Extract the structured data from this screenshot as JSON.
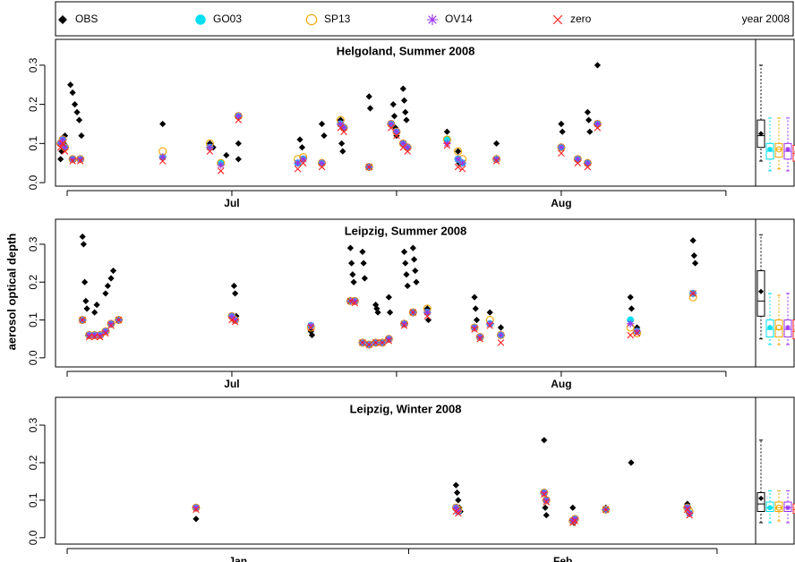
{
  "chart_data": {
    "type": "scatter",
    "ylabel": "aerosol optical depth",
    "note": "year 2008",
    "series": [
      {
        "name": "OBS",
        "color": "#000000",
        "marker": "diamond"
      },
      {
        "name": "GO03",
        "color": "#00e0f0",
        "marker": "dot"
      },
      {
        "name": "SP13",
        "color": "#f0a500",
        "marker": "ring"
      },
      {
        "name": "OV14",
        "color": "#9a32f0",
        "marker": "star"
      },
      {
        "name": "zero",
        "color": "#ff2020",
        "marker": "cross"
      }
    ],
    "panels": [
      {
        "title": "Helgoland, Summer 2008",
        "xlim": [
          -1.06,
          62.7
        ],
        "ylim": [
          -0.009,
          0.366
        ],
        "xticks": [
          0,
          15,
          30,
          45,
          60
        ],
        "xlabels": [
          {
            "value": 15,
            "label": "Jul"
          },
          {
            "value": 45,
            "label": "Aug"
          }
        ],
        "yticks": [
          {
            "value": 0,
            "label": "0.0"
          },
          {
            "value": 0.1,
            "label": "0.1"
          },
          {
            "value": 0.2,
            "label": "0.2"
          },
          {
            "value": 0.3,
            "label": "0.3"
          }
        ],
        "x": [
          -0.6,
          -0.4,
          -0.2,
          0.5,
          1.2,
          8.7,
          13,
          14,
          15.6,
          21,
          21.5,
          23.2,
          24.9,
          25.2,
          27.5,
          29.5,
          30,
          30.6,
          31,
          34.6,
          35.6,
          36,
          39.1,
          45,
          46.5,
          47.4,
          48.3
        ],
        "series": [
          {
            "x": [
              -0.6,
              -0.5,
              -0.3,
              -0.2,
              0.3,
              0.5,
              0.7,
              0.9,
              1.1,
              1.3,
              8.7,
              13,
              13.3,
              14.5,
              15.6,
              15.6,
              21.2,
              21.4,
              23.2,
              23.4,
              24.9,
              25,
              25.1,
              27.5,
              27.6,
              29.7,
              29.8,
              29.9,
              30,
              30.6,
              30.7,
              30.8,
              30.9,
              34.6,
              34.7,
              35.6,
              35.7,
              39.1,
              45,
              45.1,
              47.4,
              47.5,
              47.6,
              48.3
            ],
            "values": [
              0.06,
              0.08,
              0.1,
              0.12,
              0.25,
              0.23,
              0.2,
              0.18,
              0.16,
              0.12,
              0.15,
              0.1,
              0.09,
              0.07,
              0.1,
              0.06,
              0.11,
              0.09,
              0.15,
              0.12,
              0.16,
              0.1,
              0.08,
              0.22,
              0.19,
              0.2,
              0.17,
              0.14,
              0.12,
              0.24,
              0.21,
              0.18,
              0.16,
              0.13,
              0.11,
              0.08,
              0.05,
              0.1,
              0.15,
              0.13,
              0.18,
              0.16,
              0.13,
              0.3
            ],
            "box": [
              0.055,
              0.09,
              0.12,
              0.16,
              0.3,
              0.125
            ]
          },
          {
            "values": [
              0.1,
              0.11,
              0.09,
              0.06,
              0.06,
              0.065,
              0.09,
              0.05,
              0.17,
              0.05,
              0.06,
              0.05,
              0.15,
              0.14,
              0.04,
              0.15,
              0.13,
              0.1,
              0.09,
              0.11,
              0.06,
              0.05,
              0.06,
              0.09,
              0.06,
              0.05,
              0.15
            ],
            "box": [
              0.03,
              0.06,
              0.08,
              0.1,
              0.165,
              0.085
            ]
          },
          {
            "values": [
              0.1,
              0.11,
              0.09,
              0.06,
              0.06,
              0.08,
              0.1,
              0.05,
              0.17,
              0.06,
              0.065,
              0.05,
              0.16,
              0.14,
              0.04,
              0.15,
              0.13,
              0.1,
              0.09,
              0.11,
              0.08,
              0.06,
              0.06,
              0.09,
              0.06,
              0.05,
              0.15
            ],
            "box": [
              0.035,
              0.065,
              0.085,
              0.1,
              0.165,
              0.085
            ]
          },
          {
            "values": [
              0.1,
              0.11,
              0.09,
              0.06,
              0.06,
              0.065,
              0.09,
              0.045,
              0.17,
              0.05,
              0.06,
              0.05,
              0.15,
              0.14,
              0.04,
              0.15,
              0.13,
              0.1,
              0.09,
              0.1,
              0.06,
              0.05,
              0.06,
              0.09,
              0.06,
              0.05,
              0.15
            ],
            "box": [
              0.03,
              0.06,
              0.08,
              0.1,
              0.165,
              0.085
            ]
          },
          {
            "values": [
              0.09,
              0.1,
              0.08,
              0.055,
              0.055,
              0.055,
              0.08,
              0.03,
              0.16,
              0.035,
              0.05,
              0.04,
              0.14,
              0.13,
              0.04,
              0.14,
              0.12,
              0.09,
              0.08,
              0.095,
              0.04,
              0.035,
              0.055,
              0.075,
              0.05,
              0.04,
              0.14
            ],
            "box": [
              0.03,
              0.055,
              0.075,
              0.095,
              0.16,
              0.075
            ]
          }
        ]
      },
      {
        "title": "Leipzig, Summer 2008",
        "xlim": [
          -1.06,
          62.7
        ],
        "ylim": [
          -0.024,
          0.366
        ],
        "xticks": [
          0,
          15,
          30,
          45,
          60
        ],
        "xlabels": [
          {
            "value": 15,
            "label": "Jul"
          },
          {
            "value": 45,
            "label": "Aug"
          }
        ],
        "yticks": [
          {
            "value": 0,
            "label": "0.0"
          },
          {
            "value": 0.1,
            "label": "0.1"
          },
          {
            "value": 0.2,
            "label": "0.2"
          },
          {
            "value": 0.3,
            "label": "0.3"
          }
        ],
        "x": [
          1.4,
          2,
          2.5,
          3,
          3.5,
          4,
          4.7,
          15,
          15.3,
          22.2,
          25.8,
          26.2,
          26.9,
          27.5,
          28.1,
          28.7,
          29.3,
          30.7,
          31.5,
          32.8,
          37.1,
          37.6,
          38.5,
          39.5,
          51.3,
          51.9,
          57
        ],
        "series": [
          {
            "x": [
              1.4,
              1.5,
              1.6,
              1.7,
              1.8,
              2.5,
              2.7,
              3.5,
              3.7,
              4,
              4.2,
              15.2,
              15.3,
              15.4,
              22.2,
              22.3,
              25.8,
              25.9,
              26,
              26.1,
              26.9,
              27,
              27.1,
              28.1,
              28.2,
              28.3,
              29.3,
              29.4,
              30.7,
              30.8,
              30.9,
              31,
              31.5,
              31.6,
              31.7,
              31.8,
              32.8,
              32.9,
              37.1,
              37.2,
              37.3,
              38.5,
              38.6,
              39.5,
              51.3,
              51.4,
              51.9,
              57,
              57.1,
              57.2
            ],
            "values": [
              0.32,
              0.3,
              0.2,
              0.15,
              0.13,
              0.12,
              0.14,
              0.17,
              0.19,
              0.21,
              0.23,
              0.19,
              0.17,
              0.11,
              0.07,
              0.06,
              0.29,
              0.25,
              0.22,
              0.2,
              0.28,
              0.25,
              0.21,
              0.14,
              0.13,
              0.12,
              0.16,
              0.12,
              0.28,
              0.25,
              0.22,
              0.19,
              0.29,
              0.26,
              0.23,
              0.2,
              0.13,
              0.1,
              0.16,
              0.13,
              0.1,
              0.12,
              0.09,
              0.08,
              0.16,
              0.13,
              0.08,
              0.31,
              0.27,
              0.25
            ],
            "box": [
              0.05,
              0.11,
              0.15,
              0.23,
              0.325,
              0.175
            ]
          },
          {
            "values": [
              0.1,
              0.06,
              0.06,
              0.06,
              0.07,
              0.09,
              0.1,
              0.11,
              0.1,
              0.085,
              0.15,
              0.15,
              0.04,
              0.035,
              0.04,
              0.04,
              0.05,
              0.09,
              0.12,
              0.12,
              0.08,
              0.055,
              0.09,
              0.06,
              0.1,
              0.07,
              0.17
            ],
            "box": [
              0.035,
              0.055,
              0.075,
              0.1,
              0.17,
              0.08
            ]
          },
          {
            "values": [
              0.1,
              0.06,
              0.06,
              0.06,
              0.07,
              0.09,
              0.1,
              0.11,
              0.1,
              0.08,
              0.15,
              0.15,
              0.04,
              0.035,
              0.04,
              0.04,
              0.05,
              0.09,
              0.12,
              0.13,
              0.08,
              0.055,
              0.1,
              0.06,
              0.08,
              0.065,
              0.16
            ],
            "box": [
              0.035,
              0.055,
              0.075,
              0.1,
              0.165,
              0.08
            ]
          },
          {
            "values": [
              0.1,
              0.06,
              0.06,
              0.06,
              0.07,
              0.09,
              0.1,
              0.11,
              0.1,
              0.085,
              0.15,
              0.15,
              0.04,
              0.035,
              0.04,
              0.04,
              0.05,
              0.09,
              0.12,
              0.12,
              0.08,
              0.055,
              0.09,
              0.06,
              0.09,
              0.07,
              0.17
            ],
            "box": [
              0.035,
              0.055,
              0.075,
              0.1,
              0.17,
              0.08
            ]
          },
          {
            "values": [
              0.1,
              0.055,
              0.055,
              0.055,
              0.065,
              0.085,
              0.1,
              0.1,
              0.095,
              0.08,
              0.15,
              0.145,
              0.04,
              0.035,
              0.04,
              0.04,
              0.045,
              0.085,
              0.12,
              0.11,
              0.075,
              0.05,
              0.085,
              0.04,
              0.06,
              0.065,
              0.17
            ],
            "box": [
              0.035,
              0.05,
              0.07,
              0.1,
              0.17,
              0.08
            ]
          }
        ]
      },
      {
        "title": "Leipzig, Winter 2008",
        "xlim": [
          -1.06,
          62.5
        ],
        "ylim": [
          -0.017,
          0.374
        ],
        "xticks": [
          0,
          31,
          59
        ],
        "xlabels": [
          {
            "value": 15.5,
            "label": "Jan"
          },
          {
            "value": 45,
            "label": "Feb"
          }
        ],
        "yticks": [
          {
            "value": 0,
            "label": "0.0"
          },
          {
            "value": 0.1,
            "label": "0.1"
          },
          {
            "value": 0.2,
            "label": "0.2"
          },
          {
            "value": 0.3,
            "label": "0.3"
          }
        ],
        "x": [
          11.7,
          35.3,
          35.5,
          43.3,
          43.5,
          45.9,
          46.1,
          48.9,
          56.3,
          56.5
        ],
        "series": [
          {
            "x": [
              11.7,
              35.3,
              35.4,
              35.5,
              35.6,
              35.7,
              43.3,
              43.4,
              43.5,
              45.9,
              46,
              48.9,
              51.2,
              56.3,
              56.4
            ],
            "values": [
              0.05,
              0.14,
              0.12,
              0.1,
              0.08,
              0.07,
              0.26,
              0.08,
              0.06,
              0.08,
              0.04,
              0.08,
              0.2,
              0.09,
              0.08
            ],
            "box": [
              0.04,
              0.07,
              0.09,
              0.12,
              0.26,
              0.105
            ]
          },
          {
            "values": [
              0.08,
              0.08,
              0.07,
              0.12,
              0.1,
              0.045,
              0.05,
              0.075,
              0.08,
              0.065
            ],
            "box": [
              0.04,
              0.07,
              0.08,
              0.095,
              0.125,
              0.08
            ]
          },
          {
            "values": [
              0.08,
              0.08,
              0.075,
              0.12,
              0.1,
              0.045,
              0.05,
              0.075,
              0.08,
              0.07
            ],
            "box": [
              0.045,
              0.07,
              0.08,
              0.095,
              0.125,
              0.08
            ]
          },
          {
            "values": [
              0.08,
              0.08,
              0.07,
              0.12,
              0.1,
              0.045,
              0.05,
              0.075,
              0.08,
              0.065
            ],
            "box": [
              0.04,
              0.07,
              0.08,
              0.095,
              0.125,
              0.08
            ]
          },
          {
            "values": [
              0.075,
              0.07,
              0.065,
              0.115,
              0.095,
              0.04,
              0.045,
              0.075,
              0.075,
              0.06
            ],
            "box": [
              0.04,
              0.065,
              0.075,
              0.09,
              0.12,
              0.075
            ]
          }
        ]
      }
    ]
  }
}
